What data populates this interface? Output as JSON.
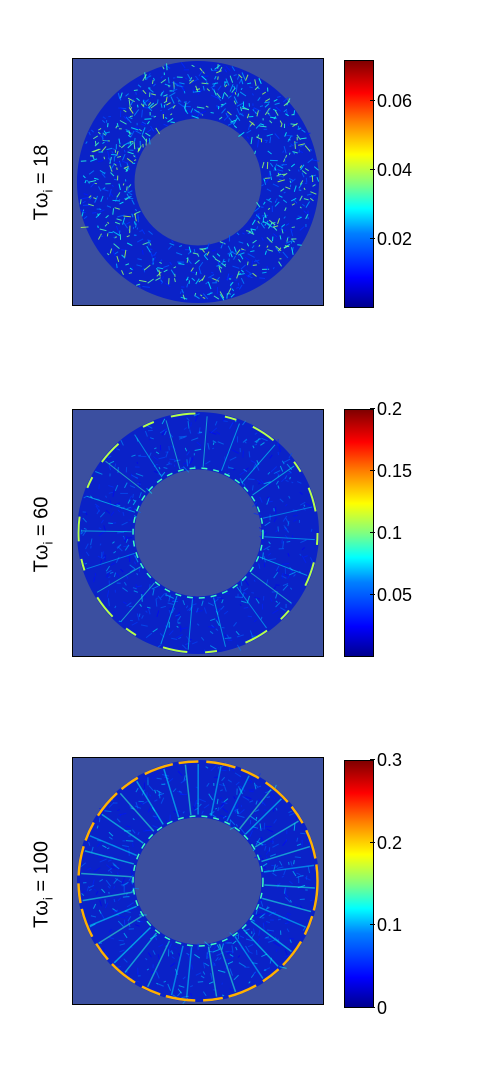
{
  "chart_data": [
    {
      "type": "heatmap",
      "title": "",
      "ylabel": "Tω_i = 18",
      "ylabel_parts": {
        "prefix": "Tω",
        "sub": "i",
        "suffix": " = 18"
      },
      "colormap": "jet",
      "clim": [
        0,
        0.072
      ],
      "colorbar_ticks": [
        "0.02",
        "0.04",
        "0.06"
      ],
      "colorbar_tick_values": [
        0.02,
        0.04,
        0.06
      ],
      "background_color": "#3b4fa0"
    },
    {
      "type": "heatmap",
      "title": "",
      "ylabel": "Tω_i = 60",
      "ylabel_parts": {
        "prefix": "Tω",
        "sub": "i",
        "suffix": " = 60"
      },
      "colormap": "jet",
      "clim": [
        0,
        0.2
      ],
      "colorbar_ticks": [
        "0.05",
        "0.1",
        "0.15",
        "0.2"
      ],
      "colorbar_tick_values": [
        0.05,
        0.1,
        0.15,
        0.2
      ],
      "background_color": "#3b4fa0"
    },
    {
      "type": "heatmap",
      "title": "",
      "ylabel": "Tω_i = 100",
      "ylabel_parts": {
        "prefix": "Tω",
        "sub": "i",
        "suffix": " = 100"
      },
      "colormap": "jet",
      "clim": [
        0,
        0.3
      ],
      "colorbar_ticks": [
        "0",
        "0.1",
        "0.2",
        "0.3"
      ],
      "colorbar_tick_values": [
        0,
        0.1,
        0.2,
        0.3
      ],
      "background_color": "#3b4fa0"
    }
  ]
}
